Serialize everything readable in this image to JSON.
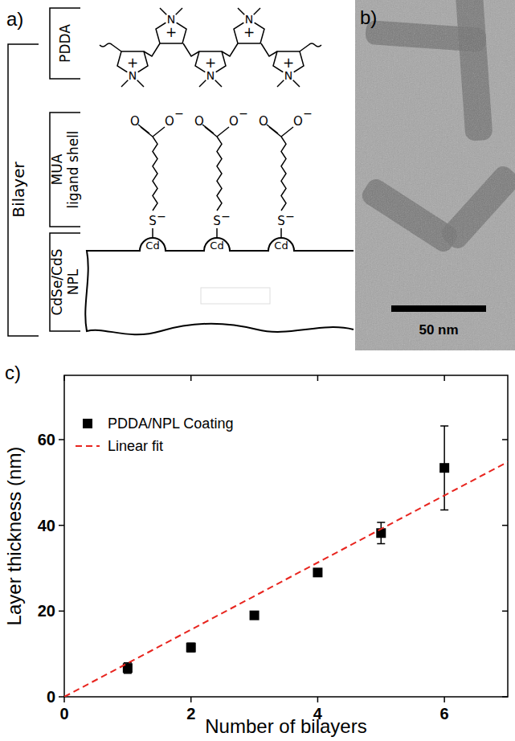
{
  "chart_data": {
    "type": "scatter",
    "letter": "c)",
    "x_label": "Number of bilayers",
    "y_label": "Layer thickness (nm)",
    "xlim": [
      0,
      7
    ],
    "ylim": [
      0,
      75
    ],
    "xticks": [
      0,
      2,
      4,
      6
    ],
    "yticks": [
      0,
      20,
      40,
      60
    ],
    "grid": false,
    "legend": "top-left",
    "series": [
      {
        "name": "PDDA/NPL Coating",
        "type": "scatter",
        "marker": "square",
        "color": "#000000",
        "x": [
          1,
          2,
          3,
          4,
          5,
          6
        ],
        "values": [
          6.7,
          11.5,
          19.0,
          29.0,
          38.2,
          53.4
        ],
        "errors": [
          1.2,
          1.0,
          0.8,
          0.8,
          2.5,
          9.8
        ]
      },
      {
        "name": "Linear fit",
        "type": "line",
        "line_style": "dashed",
        "color": "#e8251f",
        "x": [
          0,
          7
        ],
        "values": [
          0,
          54.8
        ]
      }
    ]
  },
  "diagram": {
    "letter": "a)",
    "group_label": "Bilayer",
    "layers": [
      "PDDA",
      "MUA ligand shell",
      "CdSe/CdS NPL"
    ],
    "amine_atom": "N",
    "positive_charge": "+",
    "oxygen_atom": "O",
    "negative_charge": "−",
    "sulfur_atom": "S",
    "surface_atom": "Cd"
  },
  "image": {
    "letter": "b)",
    "scale_bar": "50 nm"
  }
}
